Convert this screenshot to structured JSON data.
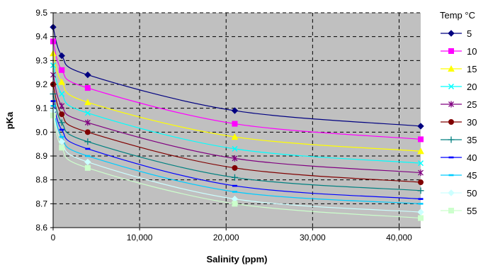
{
  "chart_data": {
    "type": "line",
    "title": "",
    "xlabel": "Salinity (ppm)",
    "ylabel": "pKa",
    "xlim": [
      0,
      42500
    ],
    "ylim": [
      8.6,
      9.5
    ],
    "x_ticks": [
      0,
      10000,
      20000,
      30000,
      40000
    ],
    "x_tick_labels": [
      "0",
      "10,000",
      "20,000",
      "30,000",
      "40,000"
    ],
    "y_ticks": [
      8.6,
      8.7,
      8.8,
      8.9,
      9.0,
      9.1,
      9.2,
      9.3,
      9.4,
      9.5
    ],
    "y_tick_labels": [
      "8.6",
      "8.7",
      "8.8",
      "8.9",
      "9.0",
      "9.1",
      "9.2",
      "9.3",
      "9.4",
      "9.5"
    ],
    "grid": "dashed",
    "plot_background": "#c0c0c0",
    "legend_title": "Temp °C",
    "legend_position": "right",
    "x": [
      0,
      1000,
      4000,
      21000,
      42500
    ],
    "series": [
      {
        "name": "5",
        "color": "#000080",
        "marker": "diamond",
        "values": [
          9.44,
          9.32,
          9.24,
          9.09,
          9.025
        ]
      },
      {
        "name": "10",
        "color": "#ff00ff",
        "marker": "square",
        "values": [
          9.38,
          9.26,
          9.185,
          9.035,
          8.97
        ]
      },
      {
        "name": "15",
        "color": "#ffff00",
        "marker": "triangle",
        "values": [
          9.33,
          9.21,
          9.125,
          8.98,
          8.92
        ]
      },
      {
        "name": "20",
        "color": "#00ffff",
        "marker": "x",
        "values": [
          9.28,
          9.16,
          9.08,
          8.93,
          8.87
        ]
      },
      {
        "name": "25",
        "color": "#800080",
        "marker": "star",
        "values": [
          9.24,
          9.11,
          9.04,
          8.89,
          8.83
        ]
      },
      {
        "name": "30",
        "color": "#800000",
        "marker": "circle",
        "values": [
          9.2,
          9.075,
          9.0,
          8.85,
          8.79
        ]
      },
      {
        "name": "35",
        "color": "#008080",
        "marker": "plus",
        "values": [
          9.16,
          9.04,
          8.96,
          8.81,
          8.755
        ]
      },
      {
        "name": "40",
        "color": "#0000ff",
        "marker": "dash",
        "values": [
          9.13,
          9.01,
          8.93,
          8.775,
          8.72
        ]
      },
      {
        "name": "45",
        "color": "#00ccff",
        "marker": "dash",
        "values": [
          9.11,
          8.98,
          8.9,
          8.75,
          8.7
        ]
      },
      {
        "name": "50",
        "color": "#ccffff",
        "marker": "diamond",
        "values": [
          9.09,
          8.96,
          8.875,
          8.72,
          8.665
        ]
      },
      {
        "name": "55",
        "color": "#ccffcc",
        "marker": "square",
        "values": [
          9.07,
          8.935,
          8.85,
          8.7,
          8.64
        ]
      }
    ]
  }
}
